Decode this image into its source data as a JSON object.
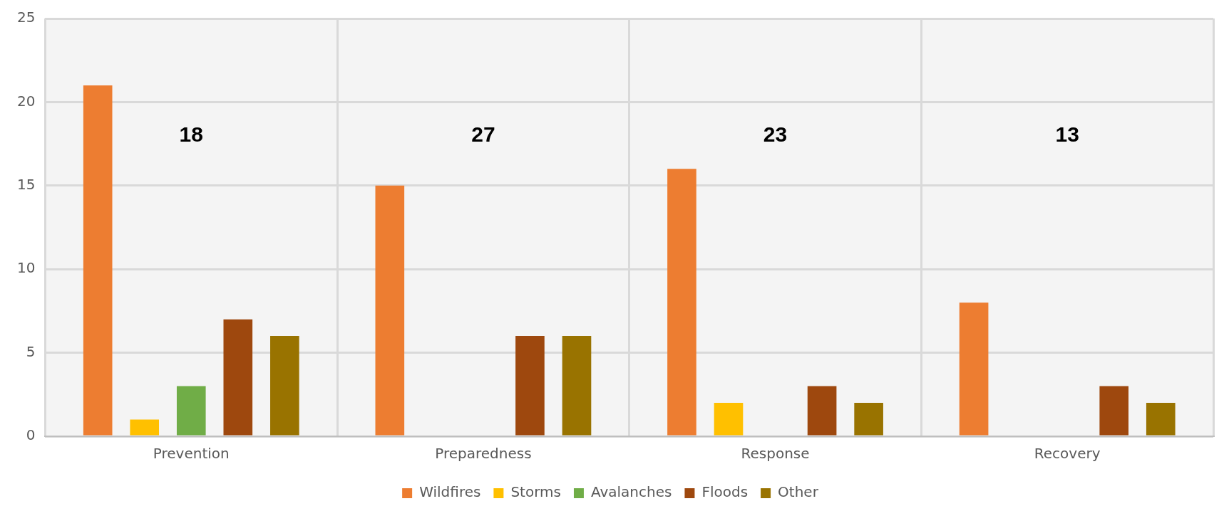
{
  "chart_data": {
    "type": "bar",
    "categories": [
      "Prevention",
      "Preparedness",
      "Response",
      "Recovery"
    ],
    "series": [
      {
        "name": "Wildfires",
        "color": "#ed7d31",
        "values": [
          21,
          15,
          16,
          8
        ]
      },
      {
        "name": "Storms",
        "color": "#ffc000",
        "values": [
          1,
          null,
          2,
          null
        ]
      },
      {
        "name": "Avalanches",
        "color": "#70ad47",
        "values": [
          3,
          null,
          null,
          null
        ]
      },
      {
        "name": "Floods",
        "color": "#9e480e",
        "values": [
          7,
          6,
          3,
          3
        ]
      },
      {
        "name": "Other",
        "color": "#997300",
        "values": [
          6,
          6,
          2,
          2
        ]
      }
    ],
    "ylim": [
      0,
      25
    ],
    "yticks": [
      0,
      5,
      10,
      15,
      20,
      25
    ],
    "grid": true,
    "legend": "bottom",
    "annotations": [
      "18",
      "27",
      "23",
      "13"
    ]
  }
}
